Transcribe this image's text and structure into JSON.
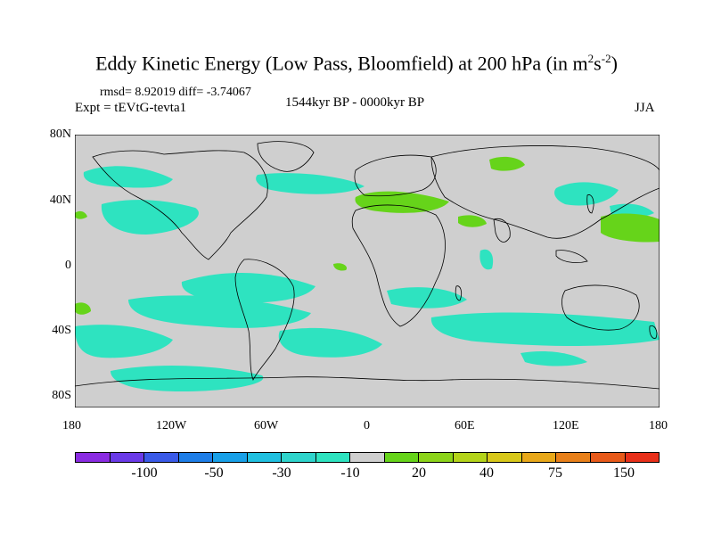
{
  "title": {
    "main": "Eddy Kinetic Energy (Low Pass, Bloomfield) at 200 hPa (in m",
    "sup1": "2",
    "mid": "s",
    "sup2": "-2",
    "close": ")"
  },
  "stats": "rmsd= 8.92019 diff= -3.74067",
  "expt": "Expt = tEVtG-tevta1",
  "period": "1544kyr BP - 0000kyr BP",
  "season": "JJA",
  "map": {
    "projection": "cylindrical equidistant",
    "background_color": "#cfcfcf",
    "lat_ticks": [
      "80N",
      "40N",
      "0",
      "40S",
      "80S"
    ],
    "lon_ticks": [
      "180",
      "120W",
      "60W",
      "0",
      "60E",
      "120E",
      "180"
    ],
    "field_regions": [
      {
        "class": "-10 to -30",
        "color": "#2ee3c0",
        "areas": [
          "North Pacific",
          "North Atlantic",
          "Southern Ocean (South Pacific)",
          "South Atlantic",
          "South Indian Ocean / Southern Australia",
          "East Asia"
        ]
      },
      {
        "class": "10 to 20",
        "color": "#66d41a",
        "areas": [
          "Mediterranean",
          "North Siberia",
          "Arabian Sea",
          "Western North Pacific",
          "South Pacific (west edge)"
        ]
      }
    ]
  },
  "colorbar": {
    "colors": [
      "#8a2be2",
      "#6a3ae8",
      "#3a5ae8",
      "#1e7ee8",
      "#18a0e8",
      "#20c0e0",
      "#2ed4cc",
      "#2ee3c0",
      "#cfcfcf",
      "#66d41a",
      "#8cd41a",
      "#b4d41a",
      "#d8c81a",
      "#e8a81a",
      "#e8801a",
      "#e85a1a",
      "#e8301a"
    ],
    "labels": [
      "-100",
      "-50",
      "-30",
      "-10",
      "20",
      "40",
      "75",
      "150"
    ]
  }
}
